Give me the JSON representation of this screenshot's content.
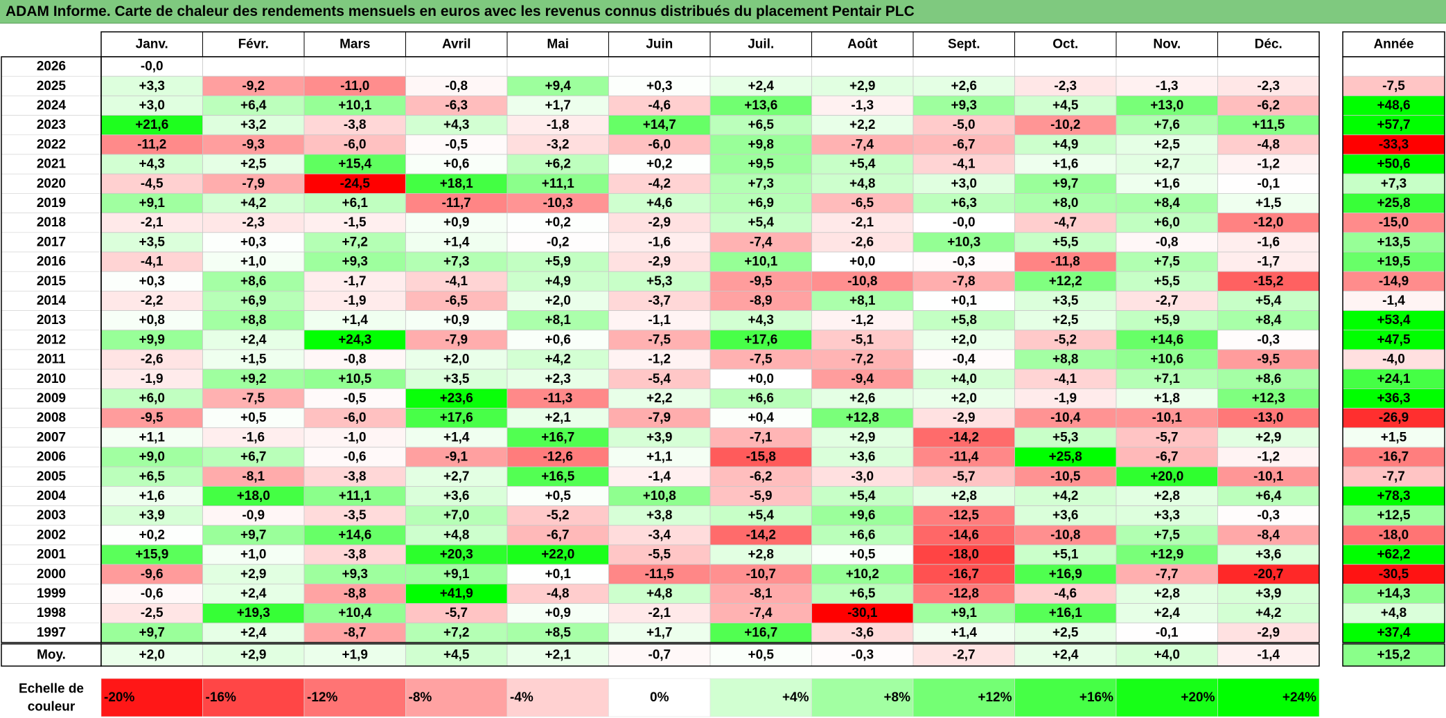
{
  "title": "ADAM Informe. Carte de chaleur des rendements mensuels en euros avec les revenus connus distribués du placement Pentair PLC",
  "chart_data": {
    "type": "heatmap",
    "title": "ADAM Informe. Carte de chaleur des rendements mensuels en euros avec les revenus connus distribués du placement Pentair PLC",
    "columns": [
      "Janv.",
      "Févr.",
      "Mars",
      "Avril",
      "Mai",
      "Juin",
      "Juil.",
      "Août",
      "Sept.",
      "Oct.",
      "Nov.",
      "Déc."
    ],
    "year_column_label": "Année",
    "rows": [
      {
        "year": "2026",
        "months": [
          "-0,0",
          "",
          "",
          "",
          "",
          "",
          "",
          "",
          "",
          "",
          "",
          ""
        ],
        "annual": ""
      },
      {
        "year": "2025",
        "months": [
          "+3,3",
          "-9,2",
          "-11,0",
          "-0,8",
          "+9,4",
          "+0,3",
          "+2,4",
          "+2,9",
          "+2,6",
          "-2,3",
          "-1,3",
          "-2,3"
        ],
        "annual": "-7,5"
      },
      {
        "year": "2024",
        "months": [
          "+3,0",
          "+6,4",
          "+10,1",
          "-6,3",
          "+1,7",
          "-4,6",
          "+13,6",
          "-1,3",
          "+9,3",
          "+4,5",
          "+13,0",
          "-6,2"
        ],
        "annual": "+48,6"
      },
      {
        "year": "2023",
        "months": [
          "+21,6",
          "+3,2",
          "-3,8",
          "+4,3",
          "-1,8",
          "+14,7",
          "+6,5",
          "+2,2",
          "-5,0",
          "-10,2",
          "+7,6",
          "+11,5"
        ],
        "annual": "+57,7"
      },
      {
        "year": "2022",
        "months": [
          "-11,2",
          "-9,3",
          "-6,0",
          "-0,5",
          "-3,2",
          "-6,0",
          "+9,8",
          "-7,4",
          "-6,7",
          "+4,9",
          "+2,5",
          "-4,8"
        ],
        "annual": "-33,3"
      },
      {
        "year": "2021",
        "months": [
          "+4,3",
          "+2,5",
          "+15,4",
          "+0,6",
          "+6,2",
          "+0,2",
          "+9,5",
          "+5,4",
          "-4,1",
          "+1,6",
          "+2,7",
          "-1,2"
        ],
        "annual": "+50,6"
      },
      {
        "year": "2020",
        "months": [
          "-4,5",
          "-7,9",
          "-24,5",
          "+18,1",
          "+11,1",
          "-4,2",
          "+7,3",
          "+4,8",
          "+3,0",
          "+9,7",
          "+1,6",
          "-0,1"
        ],
        "annual": "+7,3"
      },
      {
        "year": "2019",
        "months": [
          "+9,1",
          "+4,2",
          "+6,1",
          "-11,7",
          "-10,3",
          "+4,6",
          "+6,9",
          "-6,5",
          "+6,3",
          "+8,0",
          "+8,4",
          "+1,5"
        ],
        "annual": "+25,8"
      },
      {
        "year": "2018",
        "months": [
          "-2,1",
          "-2,3",
          "-1,5",
          "+0,9",
          "+0,2",
          "-2,9",
          "+5,4",
          "-2,1",
          "-0,0",
          "-4,7",
          "+6,0",
          "-12,0"
        ],
        "annual": "-15,0"
      },
      {
        "year": "2017",
        "months": [
          "+3,5",
          "+0,3",
          "+7,2",
          "+1,4",
          "-0,2",
          "-1,6",
          "-7,4",
          "-2,6",
          "+10,3",
          "+5,5",
          "-0,8",
          "-1,6"
        ],
        "annual": "+13,5"
      },
      {
        "year": "2016",
        "months": [
          "-4,1",
          "+1,0",
          "+9,3",
          "+7,3",
          "+5,9",
          "-2,9",
          "+10,1",
          "+0,0",
          "-0,3",
          "-11,8",
          "+7,5",
          "-1,7"
        ],
        "annual": "+19,5"
      },
      {
        "year": "2015",
        "months": [
          "+0,3",
          "+8,6",
          "-1,7",
          "-4,1",
          "+4,9",
          "+5,3",
          "-9,5",
          "-10,8",
          "-7,8",
          "+12,2",
          "+5,5",
          "-15,2"
        ],
        "annual": "-14,9"
      },
      {
        "year": "2014",
        "months": [
          "-2,2",
          "+6,9",
          "-1,9",
          "-6,5",
          "+2,0",
          "-3,7",
          "-8,9",
          "+8,1",
          "+0,1",
          "+3,5",
          "-2,7",
          "+5,4"
        ],
        "annual": "-1,4"
      },
      {
        "year": "2013",
        "months": [
          "+0,8",
          "+8,8",
          "+1,4",
          "+0,9",
          "+8,1",
          "-1,1",
          "+4,3",
          "-1,2",
          "+5,8",
          "+2,5",
          "+5,9",
          "+8,4"
        ],
        "annual": "+53,4"
      },
      {
        "year": "2012",
        "months": [
          "+9,9",
          "+2,4",
          "+24,3",
          "-7,9",
          "+0,6",
          "-7,5",
          "+17,6",
          "-5,1",
          "+2,0",
          "-5,2",
          "+14,6",
          "-0,3"
        ],
        "annual": "+47,5"
      },
      {
        "year": "2011",
        "months": [
          "-2,6",
          "+1,5",
          "-0,8",
          "+2,0",
          "+4,2",
          "-1,2",
          "-7,5",
          "-7,2",
          "-0,4",
          "+8,8",
          "+10,6",
          "-9,5"
        ],
        "annual": "-4,0"
      },
      {
        "year": "2010",
        "months": [
          "-1,9",
          "+9,2",
          "+10,5",
          "+3,5",
          "+2,3",
          "-5,4",
          "+0,0",
          "-9,4",
          "+4,0",
          "-4,1",
          "+7,1",
          "+8,6"
        ],
        "annual": "+24,1"
      },
      {
        "year": "2009",
        "months": [
          "+6,0",
          "-7,5",
          "-0,5",
          "+23,6",
          "-11,3",
          "+2,2",
          "+6,6",
          "+2,6",
          "+2,0",
          "-1,9",
          "+1,8",
          "+12,3"
        ],
        "annual": "+36,3"
      },
      {
        "year": "2008",
        "months": [
          "-9,5",
          "+0,5",
          "-6,0",
          "+17,6",
          "+2,1",
          "-7,9",
          "+0,4",
          "+12,8",
          "-2,9",
          "-10,4",
          "-10,1",
          "-13,0"
        ],
        "annual": "-26,9"
      },
      {
        "year": "2007",
        "months": [
          "+1,1",
          "-1,6",
          "-1,0",
          "+1,4",
          "+16,7",
          "+3,9",
          "-7,1",
          "+2,9",
          "-14,2",
          "+5,3",
          "-5,7",
          "+2,9"
        ],
        "annual": "+1,5"
      },
      {
        "year": "2006",
        "months": [
          "+9,0",
          "+6,7",
          "-0,6",
          "-9,1",
          "-12,6",
          "+1,1",
          "-15,8",
          "+3,6",
          "-11,4",
          "+25,8",
          "-6,7",
          "-1,2"
        ],
        "annual": "-16,7"
      },
      {
        "year": "2005",
        "months": [
          "+6,5",
          "-8,1",
          "-3,8",
          "+2,7",
          "+16,5",
          "-1,4",
          "-6,2",
          "-3,0",
          "-5,7",
          "-10,5",
          "+20,0",
          "-10,1"
        ],
        "annual": "-7,7"
      },
      {
        "year": "2004",
        "months": [
          "+1,6",
          "+18,0",
          "+11,1",
          "+3,6",
          "+0,5",
          "+10,8",
          "-5,9",
          "+5,4",
          "+2,8",
          "+4,2",
          "+2,8",
          "+6,4"
        ],
        "annual": "+78,3"
      },
      {
        "year": "2003",
        "months": [
          "+3,9",
          "-0,9",
          "-3,5",
          "+7,0",
          "-5,2",
          "+3,8",
          "+5,4",
          "+9,6",
          "-12,5",
          "+3,6",
          "+3,3",
          "-0,3"
        ],
        "annual": "+12,5"
      },
      {
        "year": "2002",
        "months": [
          "+0,2",
          "+9,7",
          "+14,6",
          "+4,8",
          "-6,7",
          "-3,4",
          "-14,2",
          "+6,6",
          "-14,6",
          "-10,8",
          "+7,5",
          "-8,4"
        ],
        "annual": "-18,0"
      },
      {
        "year": "2001",
        "months": [
          "+15,9",
          "+1,0",
          "-3,8",
          "+20,3",
          "+22,0",
          "-5,5",
          "+2,8",
          "+0,5",
          "-18,0",
          "+5,1",
          "+12,9",
          "+3,6"
        ],
        "annual": "+62,2"
      },
      {
        "year": "2000",
        "months": [
          "-9,6",
          "+2,9",
          "+9,3",
          "+9,1",
          "+0,1",
          "-11,5",
          "-10,7",
          "+10,2",
          "-16,7",
          "+16,9",
          "-7,7",
          "-20,7"
        ],
        "annual": "-30,5"
      },
      {
        "year": "1999",
        "months": [
          "-0,6",
          "+2,4",
          "-8,8",
          "+41,9",
          "-4,8",
          "+4,8",
          "-8,1",
          "+6,5",
          "-12,8",
          "-4,6",
          "+2,8",
          "+3,9"
        ],
        "annual": "+14,3"
      },
      {
        "year": "1998",
        "months": [
          "-2,5",
          "+19,3",
          "+10,4",
          "-5,7",
          "+0,9",
          "-2,1",
          "-7,4",
          "-30,1",
          "+9,1",
          "+16,1",
          "+2,4",
          "+4,2"
        ],
        "annual": "+4,8"
      },
      {
        "year": "1997",
        "months": [
          "+9,7",
          "+2,4",
          "-8,7",
          "+7,2",
          "+8,5",
          "+1,7",
          "+16,7",
          "-3,6",
          "+1,4",
          "+2,5",
          "-0,1",
          "-2,9"
        ],
        "annual": "+37,4"
      }
    ],
    "average": {
      "label": "Moy.",
      "months": [
        "+2,0",
        "+2,9",
        "+1,9",
        "+4,5",
        "+2,1",
        "-0,7",
        "+0,5",
        "-0,3",
        "-2,7",
        "+2,4",
        "+4,0",
        "-1,4"
      ],
      "annual": "+15,2"
    },
    "color_scale": {
      "label_line1": "Echelle de",
      "label_line2": "couleur",
      "steps": [
        "-20%",
        "-16%",
        "-12%",
        "-8%",
        "-4%",
        "0%",
        "+4%",
        "+8%",
        "+12%",
        "+16%",
        "+20%",
        "+24%"
      ],
      "negative_color": "#ff0000",
      "neutral_color": "#ffffff",
      "positive_color": "#00ff00"
    }
  }
}
